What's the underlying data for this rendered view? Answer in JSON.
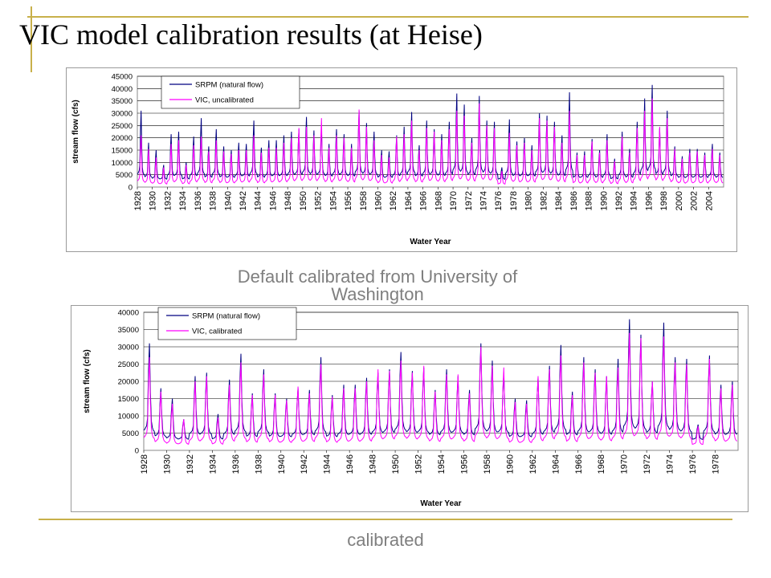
{
  "slide": {
    "title": "VIC model calibration results (at Heise)",
    "caption_top": "Default calibrated from University of Washington",
    "caption_bottom": "calibrated",
    "accent_color": "#c8b04a"
  },
  "chart_data": [
    {
      "type": "line",
      "xlabel": "Water Year",
      "ylabel": "stream flow (cfs)",
      "ylim": [
        0,
        45000
      ],
      "yticks": [
        0,
        5000,
        10000,
        15000,
        20000,
        25000,
        30000,
        35000,
        40000,
        45000
      ],
      "xlim": [
        1928,
        2006
      ],
      "xticks": [
        1928,
        1930,
        1932,
        1934,
        1936,
        1938,
        1940,
        1942,
        1944,
        1946,
        1948,
        1950,
        1952,
        1954,
        1956,
        1958,
        1960,
        1962,
        1964,
        1966,
        1968,
        1970,
        1972,
        1974,
        1976,
        1978,
        1980,
        1982,
        1984,
        1986,
        1988,
        1990,
        1992,
        1994,
        1996,
        1998,
        2000,
        2002,
        2004
      ],
      "grid": "horizontal",
      "legend_position": "top-left",
      "series": [
        {
          "name": "SRPM (natural flow)",
          "color": "#000080",
          "x": [
            1928,
            1929,
            1930,
            1931,
            1932,
            1933,
            1934,
            1935,
            1936,
            1937,
            1938,
            1939,
            1940,
            1941,
            1942,
            1943,
            1944,
            1945,
            1946,
            1947,
            1948,
            1949,
            1950,
            1951,
            1952,
            1953,
            1954,
            1955,
            1956,
            1957,
            1958,
            1959,
            1960,
            1961,
            1962,
            1963,
            1964,
            1965,
            1966,
            1967,
            1968,
            1969,
            1970,
            1971,
            1972,
            1973,
            1974,
            1975,
            1976,
            1977,
            1978,
            1979,
            1980,
            1981,
            1982,
            1983,
            1984,
            1985,
            1986,
            1987,
            1988,
            1989,
            1990,
            1991,
            1992,
            1993,
            1994,
            1995,
            1996,
            1997,
            1998,
            1999,
            2000,
            2001,
            2002,
            2003,
            2004,
            2005
          ],
          "peaks": [
            31000,
            18000,
            15000,
            9000,
            21500,
            22500,
            10000,
            20500,
            28000,
            16500,
            23500,
            16500,
            15000,
            18000,
            17500,
            27000,
            16000,
            19000,
            19000,
            21000,
            22500,
            23500,
            28500,
            23000,
            24000,
            17500,
            23500,
            21500,
            17500,
            31000,
            26000,
            22500,
            15000,
            14500,
            21000,
            24500,
            30500,
            17000,
            27000,
            23500,
            21500,
            26500,
            38000,
            33500,
            20000,
            37000,
            27000,
            26500,
            8000,
            27500,
            18500,
            20000,
            17000,
            30000,
            29000,
            26500,
            21000,
            38500,
            14000,
            14500,
            19500,
            15000,
            21500,
            11500,
            22500,
            15500,
            26500,
            36000,
            41500,
            24000,
            31000,
            16500,
            12500,
            15500,
            15500,
            14000,
            17500,
            14000
          ],
          "baseflow": [
            4000,
            3500,
            3000,
            3000,
            4000,
            4000,
            3000,
            4000,
            4500,
            3500,
            4500,
            3500,
            3500,
            4000,
            4000,
            4500,
            3500,
            4000,
            4000,
            4000,
            4500,
            4500,
            5000,
            4500,
            4500,
            4000,
            4500,
            4500,
            4000,
            5000,
            4500,
            4500,
            3500,
            3500,
            4000,
            4500,
            5000,
            4000,
            4500,
            4500,
            4000,
            4500,
            5500,
            5000,
            4500,
            5500,
            5000,
            4500,
            3000,
            4500,
            4000,
            4000,
            4000,
            5000,
            5000,
            4500,
            4000,
            5500,
            3500,
            3500,
            4000,
            3500,
            4000,
            3000,
            4000,
            3500,
            4500,
            5500,
            6000,
            4500,
            5000,
            4000,
            3500,
            3500,
            3500,
            3500,
            4000,
            3500
          ]
        },
        {
          "name": "VIC, uncalibrated",
          "color": "#ff00ff",
          "x": [
            1928,
            1929,
            1930,
            1931,
            1932,
            1933,
            1934,
            1935,
            1936,
            1937,
            1938,
            1939,
            1940,
            1941,
            1942,
            1943,
            1944,
            1945,
            1946,
            1947,
            1948,
            1949,
            1950,
            1951,
            1952,
            1953,
            1954,
            1955,
            1956,
            1957,
            1958,
            1959,
            1960,
            1961,
            1962,
            1963,
            1964,
            1965,
            1966,
            1967,
            1968,
            1969,
            1970,
            1971,
            1972,
            1973,
            1974,
            1975,
            1976,
            1977,
            1978,
            1979,
            1980,
            1981,
            1982,
            1983,
            1984,
            1985,
            1986,
            1987,
            1988,
            1989,
            1990,
            1991,
            1992,
            1993,
            1994,
            1995,
            1996,
            1997,
            1998,
            1999,
            2000,
            2001,
            2002,
            2003,
            2004,
            2005
          ],
          "peaks": [
            21000,
            15500,
            12000,
            8000,
            17500,
            19000,
            9000,
            17000,
            20500,
            14500,
            19000,
            14500,
            13500,
            15000,
            15000,
            21000,
            14000,
            16000,
            16000,
            18000,
            20000,
            24000,
            24500,
            21000,
            28000,
            16000,
            21000,
            20000,
            16000,
            31500,
            24500,
            19000,
            13000,
            12000,
            20500,
            21500,
            27000,
            15000,
            24000,
            22500,
            19000,
            23500,
            31000,
            29000,
            18000,
            34000,
            25000,
            24000,
            6500,
            22000,
            17000,
            18000,
            15000,
            28000,
            27000,
            24500,
            18000,
            31000,
            13000,
            13000,
            18500,
            14000,
            19000,
            10500,
            20500,
            14000,
            24000,
            31000,
            36000,
            24500,
            28000,
            15500,
            11500,
            14000,
            14500,
            13000,
            15500,
            13000
          ],
          "baseflow": [
            1500,
            1200,
            1000,
            1000,
            1500,
            1500,
            1000,
            1500,
            1800,
            1200,
            1800,
            1200,
            1200,
            1500,
            1500,
            1800,
            1200,
            1500,
            1500,
            1500,
            1800,
            1800,
            2000,
            1800,
            1800,
            1500,
            1800,
            1800,
            1500,
            2000,
            1800,
            1800,
            1200,
            1200,
            1500,
            1800,
            2000,
            1500,
            1800,
            1800,
            1500,
            1800,
            2200,
            2000,
            1800,
            2200,
            2000,
            1800,
            1000,
            1800,
            1500,
            1500,
            1500,
            2000,
            2000,
            1800,
            1500,
            2200,
            1200,
            1200,
            1500,
            1200,
            1500,
            1000,
            1500,
            1200,
            1800,
            2200,
            2500,
            1800,
            2000,
            1500,
            1200,
            1200,
            1200,
            1200,
            1500,
            1200
          ]
        }
      ]
    },
    {
      "type": "line",
      "xlabel": "Water Year",
      "ylabel": "stream flow (cfs)",
      "ylim": [
        0,
        40000
      ],
      "yticks": [
        0,
        5000,
        10000,
        15000,
        20000,
        25000,
        30000,
        35000,
        40000
      ],
      "xlim": [
        1928,
        1980
      ],
      "xticks": [
        1928,
        1930,
        1932,
        1934,
        1936,
        1938,
        1940,
        1942,
        1944,
        1946,
        1948,
        1950,
        1952,
        1954,
        1956,
        1958,
        1960,
        1962,
        1964,
        1966,
        1968,
        1970,
        1972,
        1974,
        1976,
        1978
      ],
      "grid": "horizontal",
      "legend_position": "top-left",
      "series": [
        {
          "name": "SRPM (natural flow)",
          "color": "#000080",
          "x": [
            1928,
            1929,
            1930,
            1931,
            1932,
            1933,
            1934,
            1935,
            1936,
            1937,
            1938,
            1939,
            1940,
            1941,
            1942,
            1943,
            1944,
            1945,
            1946,
            1947,
            1948,
            1949,
            1950,
            1951,
            1952,
            1953,
            1954,
            1955,
            1956,
            1957,
            1958,
            1959,
            1960,
            1961,
            1962,
            1963,
            1964,
            1965,
            1966,
            1967,
            1968,
            1969,
            1970,
            1971,
            1972,
            1973,
            1974,
            1975,
            1976,
            1977,
            1978,
            1979
          ],
          "peaks": [
            31000,
            18000,
            15000,
            9000,
            21500,
            22500,
            10500,
            20500,
            28000,
            16500,
            23500,
            16500,
            15000,
            18000,
            17500,
            27000,
            16000,
            19000,
            19000,
            21000,
            22500,
            23500,
            28500,
            23000,
            24000,
            17500,
            23500,
            21500,
            17500,
            31000,
            26000,
            22500,
            15000,
            14500,
            21000,
            24500,
            30500,
            17000,
            27000,
            23500,
            21500,
            26500,
            38000,
            33500,
            20000,
            37000,
            27000,
            26500,
            7500,
            27500,
            19000,
            20000
          ],
          "baseflow": [
            4500,
            3500,
            3000,
            3000,
            4000,
            4000,
            3000,
            4000,
            4500,
            3500,
            4500,
            3500,
            3500,
            4000,
            4000,
            4500,
            3500,
            4000,
            4000,
            4000,
            4500,
            4500,
            5000,
            4500,
            4500,
            4000,
            4500,
            4500,
            4000,
            5000,
            4500,
            4500,
            3500,
            3500,
            4000,
            4500,
            5000,
            4000,
            4500,
            4500,
            4000,
            4500,
            5500,
            5000,
            4500,
            5500,
            5000,
            4500,
            3000,
            4500,
            4000,
            4000
          ]
        },
        {
          "name": "VIC, calibrated",
          "color": "#ff00ff",
          "x": [
            1928,
            1929,
            1930,
            1931,
            1932,
            1933,
            1934,
            1935,
            1936,
            1937,
            1938,
            1939,
            1940,
            1941,
            1942,
            1943,
            1944,
            1945,
            1946,
            1947,
            1948,
            1949,
            1950,
            1951,
            1952,
            1953,
            1954,
            1955,
            1956,
            1957,
            1958,
            1959,
            1960,
            1961,
            1962,
            1963,
            1964,
            1965,
            1966,
            1967,
            1968,
            1969,
            1970,
            1971,
            1972,
            1973,
            1974,
            1975,
            1976,
            1977,
            1978,
            1979
          ],
          "peaks": [
            27000,
            17000,
            13500,
            9000,
            20000,
            21500,
            9500,
            19000,
            25500,
            16000,
            22000,
            16000,
            14500,
            18500,
            16500,
            25000,
            15500,
            18000,
            18000,
            20000,
            23500,
            23000,
            26000,
            22500,
            24500,
            17000,
            22000,
            22000,
            16500,
            30000,
            24500,
            24000,
            14000,
            13500,
            21500,
            23500,
            27500,
            16000,
            25500,
            22500,
            21500,
            24000,
            34000,
            32500,
            20000,
            33000,
            25500,
            25000,
            7000,
            26500,
            18000,
            19000
          ],
          "baseflow": [
            2500,
            1800,
            1500,
            1500,
            2000,
            2000,
            1500,
            2000,
            2500,
            1800,
            2500,
            1800,
            1800,
            2000,
            2000,
            2500,
            1800,
            2000,
            2000,
            2000,
            2500,
            2500,
            3000,
            2500,
            2500,
            2000,
            2500,
            2500,
            2000,
            3000,
            2500,
            2500,
            1800,
            1800,
            2000,
            2500,
            3000,
            2000,
            2500,
            2500,
            2000,
            2500,
            3000,
            3000,
            2500,
            3000,
            3000,
            2500,
            1500,
            2500,
            2000,
            2000
          ]
        }
      ]
    }
  ]
}
